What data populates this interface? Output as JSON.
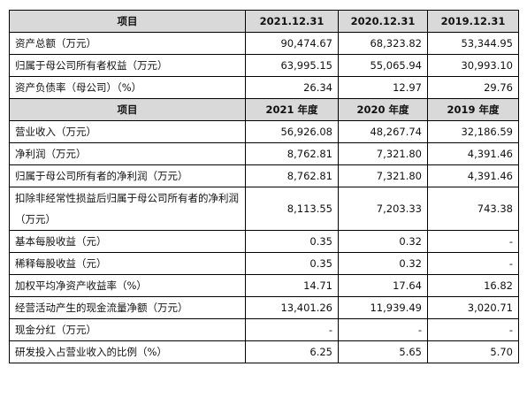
{
  "section1": {
    "headers": [
      "项目",
      "2021.12.31",
      "2020.12.31",
      "2019.12.31"
    ],
    "rows": [
      {
        "label": "资产总额（万元）",
        "values": [
          "90,474.67",
          "68,323.82",
          "53,344.95"
        ]
      },
      {
        "label": "归属于母公司所有者权益（万元）",
        "values": [
          "63,995.15",
          "55,065.94",
          "30,993.10"
        ]
      },
      {
        "label": "资产负债率（母公司）（%）",
        "values": [
          "26.34",
          "12.97",
          "29.76"
        ]
      }
    ]
  },
  "section2": {
    "headers": [
      "项目",
      "2021 年度",
      "2020 年度",
      "2019 年度"
    ],
    "rows": [
      {
        "label": "营业收入（万元）",
        "values": [
          "56,926.08",
          "48,267.74",
          "32,186.59"
        ]
      },
      {
        "label": "净利润（万元）",
        "values": [
          "8,762.81",
          "7,321.80",
          "4,391.46"
        ]
      },
      {
        "label": "归属于母公司所有者的净利润（万元）",
        "values": [
          "8,762.81",
          "7,321.80",
          "4,391.46"
        ]
      },
      {
        "label": "扣除非经常性损益后归属于母公司所有者的净利润（万元）",
        "values": [
          "8,113.55",
          "7,203.33",
          "743.38"
        ]
      },
      {
        "label": "基本每股收益（元）",
        "values": [
          "0.35",
          "0.32",
          "-"
        ]
      },
      {
        "label": "稀释每股收益（元）",
        "values": [
          "0.35",
          "0.32",
          "-"
        ]
      },
      {
        "label": "加权平均净资产收益率（%）",
        "values": [
          "14.71",
          "17.64",
          "16.82"
        ]
      },
      {
        "label": "经营活动产生的现金流量净额（万元）",
        "values": [
          "13,401.26",
          "11,939.49",
          "3,020.71"
        ]
      },
      {
        "label": "现金分红（万元）",
        "values": [
          "-",
          "-",
          "-"
        ]
      },
      {
        "label": "研发投入占营业收入的比例（%）",
        "values": [
          "6.25",
          "5.65",
          "5.70"
        ]
      }
    ]
  }
}
